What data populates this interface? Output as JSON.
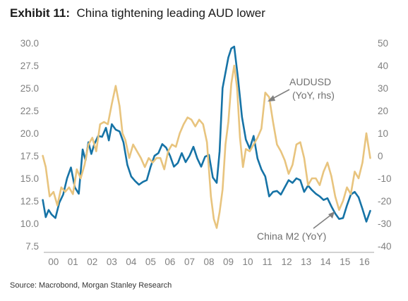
{
  "header": {
    "exhibit": "Exhibit 11:",
    "title": "China tightening leading AUD lower"
  },
  "footer": {
    "source": "Source: Macrobond, Morgan Stanley Research"
  },
  "colors": {
    "china_m2": "#1673a6",
    "audusd": "#e8c47e",
    "arrow": "#808080",
    "tick_text": "#808080"
  },
  "annotations": {
    "audusd_line1": "AUDUSD",
    "audusd_line2": "(YoY, rhs)",
    "china_m2": "China M2 (YoY)"
  },
  "chart_data": {
    "type": "line",
    "x_ticks": [
      "00",
      "01",
      "02",
      "03",
      "04",
      "05",
      "06",
      "07",
      "08",
      "09",
      "10",
      "11",
      "12",
      "13",
      "14",
      "15",
      "16"
    ],
    "xlim": [
      2000.0,
      2017.0
    ],
    "y_left": {
      "ticks": [
        "7.5",
        "10.0",
        "12.5",
        "15.0",
        "17.5",
        "20.0",
        "22.5",
        "25.0",
        "27.5",
        "30.0"
      ],
      "ylim": [
        7.5,
        30.0
      ]
    },
    "y_right": {
      "ticks": [
        "-40",
        "-30",
        "-20",
        "-10",
        "0",
        "10",
        "20",
        "30",
        "40",
        "50"
      ],
      "ylim": [
        -40,
        50
      ]
    },
    "grid": false,
    "legend": "none",
    "series": [
      {
        "name": "China M2 (YoY)",
        "axis": "left",
        "x": [
          1999.95,
          2000.1,
          2000.25,
          2000.4,
          2000.6,
          2000.8,
          2001.0,
          2001.2,
          2001.4,
          2001.6,
          2001.8,
          2002.0,
          2002.15,
          2002.3,
          2002.45,
          2002.6,
          2002.8,
          2003.0,
          2003.2,
          2003.35,
          2003.5,
          2003.7,
          2003.9,
          2004.1,
          2004.3,
          2004.5,
          2004.7,
          2004.9,
          2005.1,
          2005.3,
          2005.5,
          2005.7,
          2005.9,
          2006.1,
          2006.3,
          2006.5,
          2006.7,
          2006.9,
          2007.1,
          2007.3,
          2007.5,
          2007.7,
          2007.9,
          2008.1,
          2008.3,
          2008.5,
          2008.7,
          2008.9,
          2009.05,
          2009.2,
          2009.35,
          2009.5,
          2009.65,
          2009.8,
          2010.0,
          2010.2,
          2010.4,
          2010.6,
          2010.8,
          2011.0,
          2011.2,
          2011.4,
          2011.6,
          2011.8,
          2012.0,
          2012.2,
          2012.4,
          2012.6,
          2012.8,
          2013.0,
          2013.2,
          2013.4,
          2013.6,
          2013.8,
          2014.0,
          2014.2,
          2014.4,
          2014.6,
          2014.8,
          2015.0,
          2015.2,
          2015.4,
          2015.6,
          2015.8,
          2016.0,
          2016.2,
          2016.4,
          2016.6,
          2016.8
        ],
        "values": [
          12.6,
          10.7,
          11.5,
          11.0,
          10.6,
          12.3,
          13.2,
          15.0,
          16.2,
          14.0,
          13.3,
          18.2,
          17.0,
          19.0,
          17.7,
          18.8,
          19.7,
          19.6,
          20.6,
          19.2,
          21.0,
          20.4,
          20.2,
          19.0,
          16.5,
          15.2,
          14.7,
          14.3,
          14.6,
          14.8,
          16.3,
          17.5,
          17.8,
          18.8,
          18.4,
          17.5,
          16.3,
          16.7,
          17.8,
          16.8,
          17.5,
          18.5,
          17.2,
          16.3,
          17.4,
          17.6,
          15.1,
          14.5,
          18.0,
          25.0,
          26.7,
          28.4,
          29.4,
          29.6,
          26.0,
          21.8,
          19.3,
          18.3,
          19.7,
          17.2,
          16.0,
          15.2,
          13.0,
          13.5,
          13.6,
          13.2,
          14.0,
          14.8,
          14.5,
          15.0,
          14.8,
          13.5,
          14.2,
          13.7,
          13.3,
          13.0,
          12.6,
          12.8,
          11.9,
          11.1,
          10.5,
          10.6,
          12.0,
          13.2,
          13.5,
          12.9,
          11.6,
          10.2,
          11.4
        ]
      },
      {
        "name": "AUDUSD (YoY, rhs)",
        "axis": "right",
        "x": [
          1999.95,
          2000.1,
          2000.3,
          2000.5,
          2000.7,
          2000.9,
          2001.1,
          2001.3,
          2001.5,
          2001.7,
          2001.9,
          2002.1,
          2002.3,
          2002.5,
          2002.7,
          2002.9,
          2003.1,
          2003.3,
          2003.5,
          2003.7,
          2003.9,
          2004.05,
          2004.2,
          2004.4,
          2004.6,
          2004.8,
          2005.0,
          2005.2,
          2005.4,
          2005.6,
          2005.8,
          2006.0,
          2006.2,
          2006.4,
          2006.6,
          2006.8,
          2007.0,
          2007.2,
          2007.4,
          2007.6,
          2007.8,
          2008.0,
          2008.2,
          2008.4,
          2008.6,
          2008.75,
          2008.9,
          2009.05,
          2009.2,
          2009.35,
          2009.5,
          2009.65,
          2009.8,
          2009.95,
          2010.1,
          2010.25,
          2010.4,
          2010.6,
          2010.8,
          2011.0,
          2011.2,
          2011.4,
          2011.6,
          2011.8,
          2012.0,
          2012.2,
          2012.4,
          2012.6,
          2012.8,
          2013.0,
          2013.2,
          2013.4,
          2013.6,
          2013.8,
          2014.0,
          2014.2,
          2014.4,
          2014.6,
          2014.8,
          2015.0,
          2015.2,
          2015.4,
          2015.6,
          2015.8,
          2016.0,
          2016.2,
          2016.4,
          2016.6,
          2016.8
        ],
        "values": [
          0,
          -5,
          -18,
          -16,
          -22,
          -14,
          -16,
          -14,
          -17,
          -6,
          -10,
          -4,
          5,
          8,
          2,
          14,
          15,
          14,
          23,
          31,
          22,
          10,
          7,
          -1,
          5,
          2,
          -1,
          -5,
          -1,
          -3,
          -1,
          -1,
          -6,
          2,
          5,
          4,
          10,
          14,
          17,
          16,
          13,
          16,
          14,
          6,
          -18,
          -28,
          -32,
          -25,
          -15,
          5,
          15,
          32,
          40,
          30,
          8,
          -5,
          3,
          2,
          5,
          8,
          12,
          28,
          26,
          15,
          5,
          2,
          -2,
          -8,
          -4,
          5,
          6,
          -1,
          -13,
          -10,
          -10,
          -13,
          -7,
          -3,
          -9,
          -18,
          -24,
          -20,
          -14,
          -17,
          -7,
          -10,
          -3,
          10,
          -1
        ]
      }
    ]
  }
}
